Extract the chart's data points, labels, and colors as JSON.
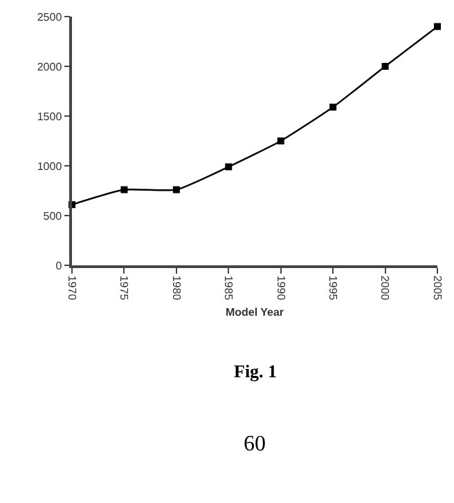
{
  "chart_data": {
    "type": "line",
    "xlabel": "Model Year",
    "x": [
      1970,
      1975,
      1980,
      1985,
      1990,
      1995,
      2000,
      2005
    ],
    "series": [
      {
        "color": "#000000",
        "values": [
          610,
          760,
          760,
          990,
          1250,
          1590,
          2000,
          2400
        ]
      }
    ],
    "xlim": [
      1970,
      2005
    ],
    "xticks": [
      1970,
      1975,
      1980,
      1985,
      1990,
      1995,
      2000,
      2005
    ],
    "ylim": [
      0,
      2500
    ],
    "yticks": [
      0,
      500,
      1000,
      1500,
      2000,
      2500
    ],
    "legend": false,
    "marker": "square",
    "line_style": "solid",
    "annotations": [
      "Fig. 1",
      "60"
    ]
  }
}
